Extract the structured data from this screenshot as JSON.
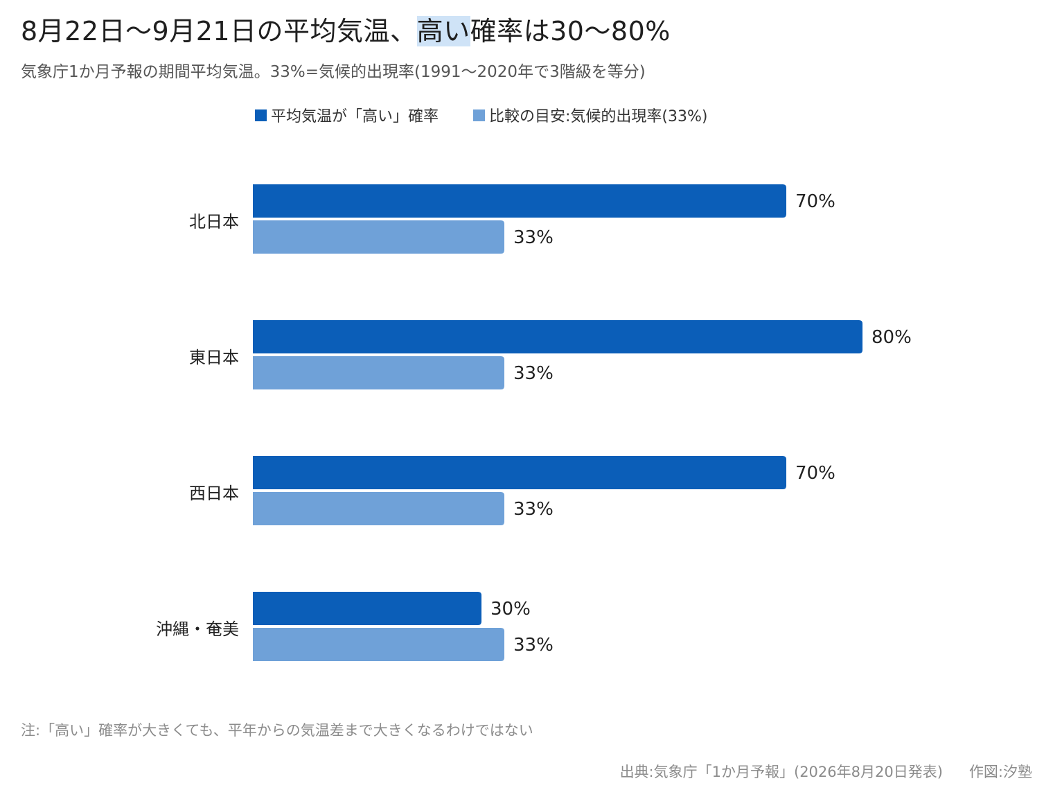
{
  "title": {
    "prefix": "8月22日〜9月21日の平均気温、",
    "highlight": "高い",
    "suffix": "確率は30〜80%"
  },
  "subtitle": "気象庁1か月予報の期間平均気温。33%=気候的出現率(1991〜2020年で3階級を等分)",
  "legend": [
    {
      "label": "平均気温が「高い」確率",
      "color": "#0b5eb8"
    },
    {
      "label": "比較の目安:気候的出現率(33%)",
      "color": "#6fa1d8"
    }
  ],
  "chart_data": {
    "type": "bar",
    "orientation": "horizontal",
    "categories": [
      "北日本",
      "東日本",
      "西日本",
      "沖縄・奄美"
    ],
    "series": [
      {
        "name": "平均気温が「高い」確率",
        "values": [
          70,
          80,
          70,
          30
        ],
        "color": "#0b5eb8"
      },
      {
        "name": "比較の目安:気候的出現率(33%)",
        "values": [
          33,
          33,
          33,
          33
        ],
        "color": "#6fa1d8"
      }
    ],
    "value_suffix": "%",
    "xlim": [
      0,
      100
    ],
    "grid": false,
    "legend_position": "top"
  },
  "note": "注:「高い」確率が大きくても、平年からの気温差まで大きくなるわけではない",
  "source": {
    "text": "出典:気象庁「1か月予報」(2026年8月20日発表)",
    "credit": "作図:汐塾"
  }
}
